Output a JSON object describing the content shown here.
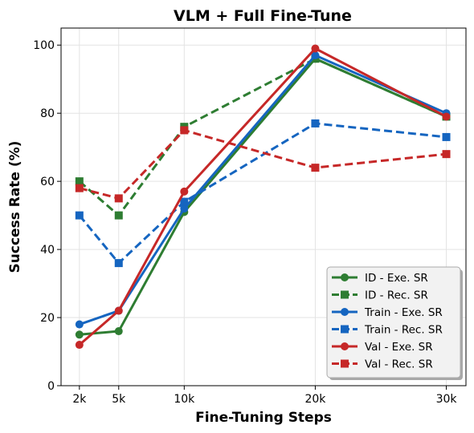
{
  "chart_data": {
    "type": "line",
    "title": "VLM + Full Fine-Tune",
    "xlabel": "Fine-Tuning Steps",
    "ylabel": "Success Rate (%)",
    "x": [
      2,
      5,
      10,
      20,
      30
    ],
    "x_tick_labels": [
      "2k",
      "5k",
      "10k",
      "20k",
      "30k"
    ],
    "xlim": [
      0.6,
      31.5
    ],
    "ylim": [
      0,
      105
    ],
    "y_ticks": [
      0,
      20,
      40,
      60,
      80,
      100
    ],
    "grid": true,
    "legend_position": "lower-right",
    "series": [
      {
        "name": "ID - Exe. SR",
        "values": [
          15,
          16,
          51,
          96,
          79
        ],
        "color": "#2e7d32",
        "linestyle": "solid",
        "marker": "circle"
      },
      {
        "name": "ID - Rec. SR",
        "values": [
          60,
          50,
          76,
          96,
          79
        ],
        "color": "#2e7d32",
        "linestyle": "dashed",
        "marker": "square"
      },
      {
        "name": "Train - Exe. SR",
        "values": [
          18,
          22,
          52,
          97,
          80
        ],
        "color": "#1565c0",
        "linestyle": "solid",
        "marker": "circle"
      },
      {
        "name": "Train - Rec. SR",
        "values": [
          50,
          36,
          54,
          77,
          73
        ],
        "color": "#1565c0",
        "linestyle": "dashed",
        "marker": "square"
      },
      {
        "name": "Val - Exe. SR",
        "values": [
          12,
          22,
          57,
          99,
          79
        ],
        "color": "#c62828",
        "linestyle": "solid",
        "marker": "circle"
      },
      {
        "name": "Val - Rec. SR",
        "values": [
          58,
          55,
          75,
          64,
          68
        ],
        "color": "#c62828",
        "linestyle": "dashed",
        "marker": "square"
      }
    ]
  }
}
